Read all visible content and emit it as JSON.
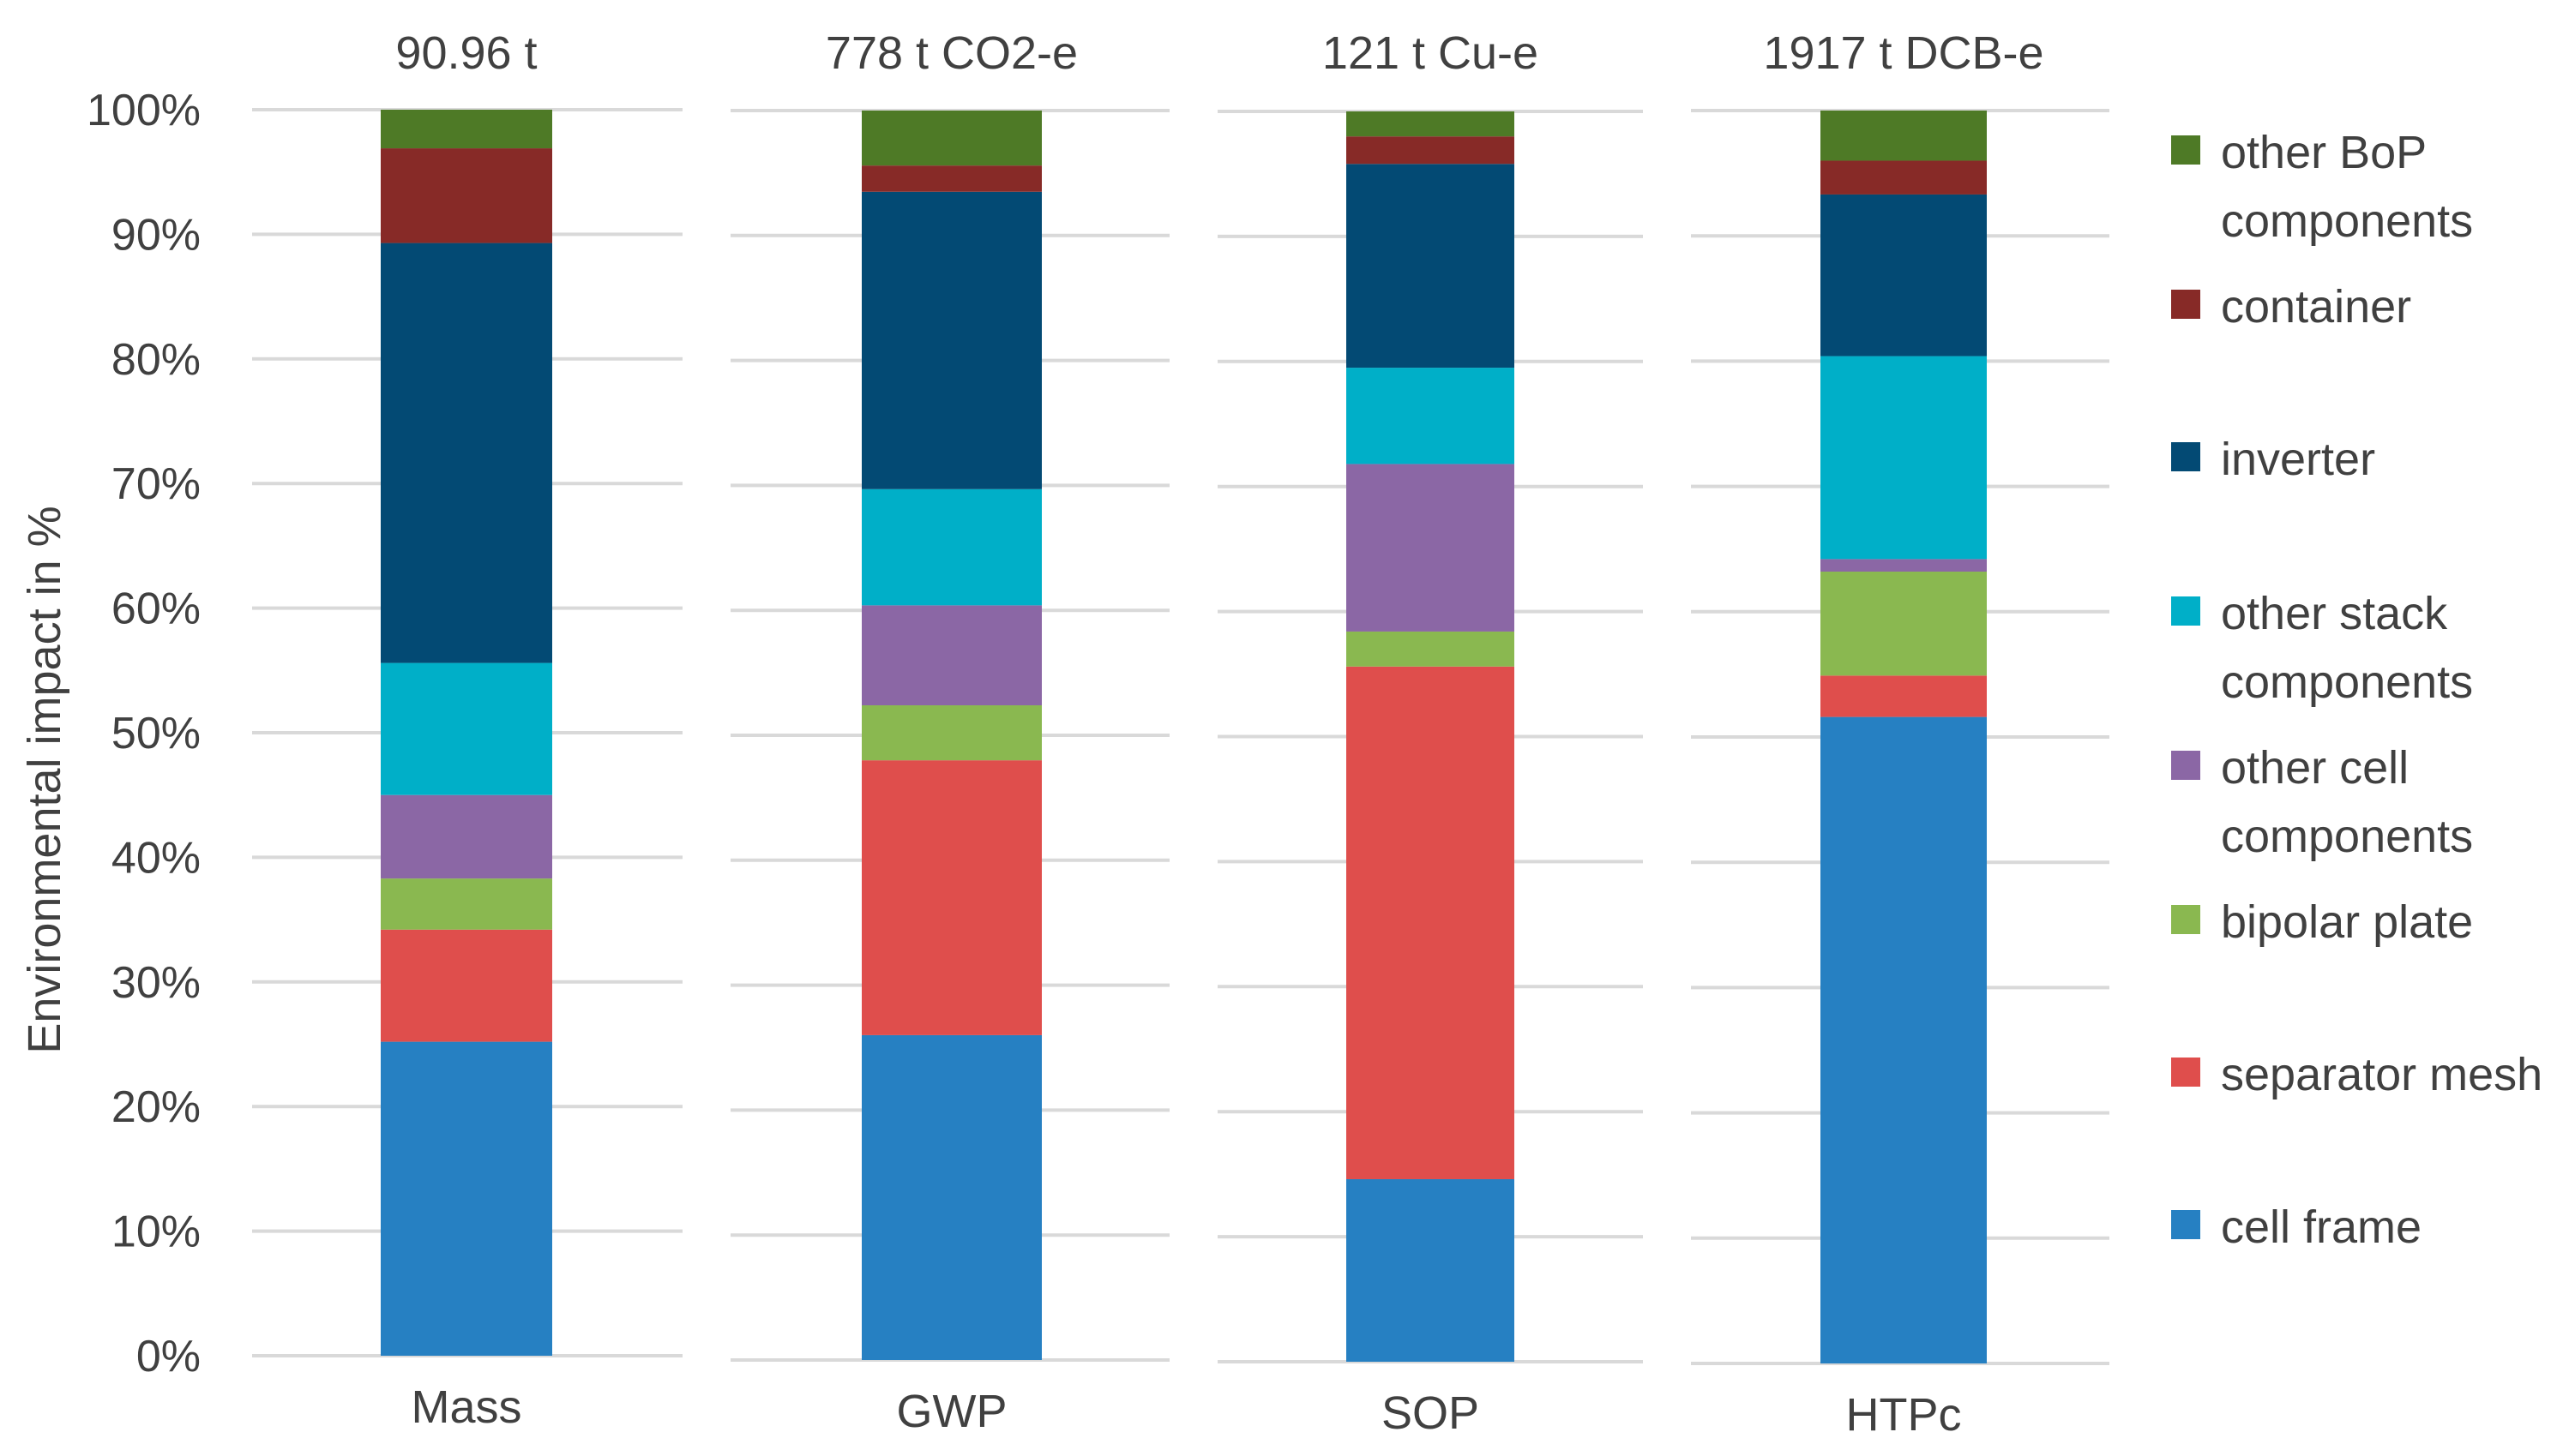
{
  "chart_data": {
    "type": "bar",
    "stacked": true,
    "normalized": true,
    "ylabel": "Environmental impact in %",
    "ylim": [
      0,
      100
    ],
    "yticks": [
      "0%",
      "10%",
      "20%",
      "30%",
      "40%",
      "50%",
      "60%",
      "70%",
      "80%",
      "90%",
      "100%"
    ],
    "grid": true,
    "legend_position": "right",
    "categories": [
      "Mass",
      "GWP",
      "SOP",
      "HTPc"
    ],
    "panel_titles": [
      "90.96 t",
      "778 t CO2-e",
      "121 t Cu-e",
      "1917 t DCB-e"
    ],
    "series": [
      {
        "name": "cell frame",
        "color": "#2680c2",
        "values": [
          25.2,
          26.0,
          14.6,
          51.6
        ]
      },
      {
        "name": "separator mesh",
        "color": "#df4e4c",
        "values": [
          9.0,
          22.0,
          41.0,
          3.3
        ]
      },
      {
        "name": "bipolar plate",
        "color": "#8ab850",
        "values": [
          4.1,
          4.4,
          2.8,
          8.3
        ]
      },
      {
        "name": "other cell components",
        "color": "#8b67a5",
        "values": [
          6.7,
          8.0,
          13.4,
          1.0
        ]
      },
      {
        "name": "other stack components",
        "color": "#00afc8",
        "values": [
          10.6,
          9.3,
          7.7,
          16.2
        ]
      },
      {
        "name": "inverter",
        "color": "#034a74",
        "values": [
          33.7,
          23.8,
          16.3,
          12.9
        ]
      },
      {
        "name": "container",
        "color": "#872a27",
        "values": [
          7.6,
          2.1,
          2.2,
          2.7
        ]
      },
      {
        "name": "other BoP components",
        "color": "#4e7a26",
        "values": [
          3.1,
          4.4,
          2.0,
          4.0
        ]
      }
    ],
    "legend_lines": [
      [
        "other BoP",
        "components"
      ],
      [
        "container"
      ],
      [
        "inverter"
      ],
      [
        "other stack",
        "components"
      ],
      [
        "other cell",
        "components"
      ],
      [
        "bipolar plate"
      ],
      [
        "separator mesh"
      ],
      [
        "cell frame"
      ]
    ]
  }
}
